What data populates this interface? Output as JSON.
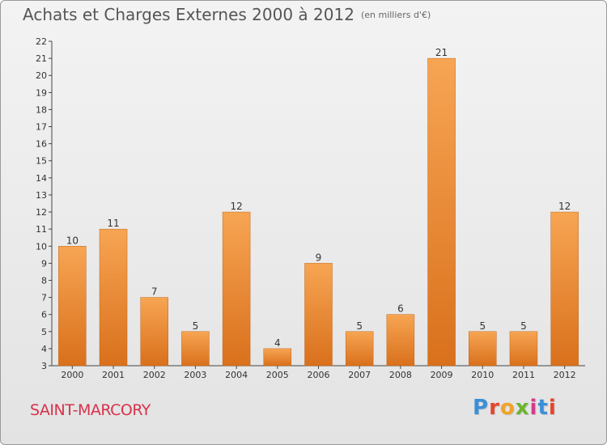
{
  "title": "Achats et Charges Externes 2000 à 2012",
  "title_unit": "(en milliers d'€)",
  "place_name": "SAINT-MARCORY",
  "logo_text": "Proxiti",
  "chart_data": {
    "type": "bar",
    "title": "Achats et Charges Externes 2000 à 2012",
    "categories": [
      "2000",
      "2001",
      "2002",
      "2003",
      "2004",
      "2005",
      "2006",
      "2007",
      "2008",
      "2009",
      "2010",
      "2011",
      "2012"
    ],
    "values": [
      10,
      11,
      7,
      5,
      12,
      4,
      9,
      5,
      6,
      21,
      5,
      5,
      12
    ],
    "ylim": [
      3,
      22
    ],
    "yticks": [
      3,
      4,
      5,
      6,
      7,
      8,
      9,
      10,
      11,
      12,
      13,
      14,
      15,
      16,
      17,
      18,
      19,
      20,
      21,
      22
    ],
    "grid": false,
    "bar_color": "#e8872e"
  }
}
